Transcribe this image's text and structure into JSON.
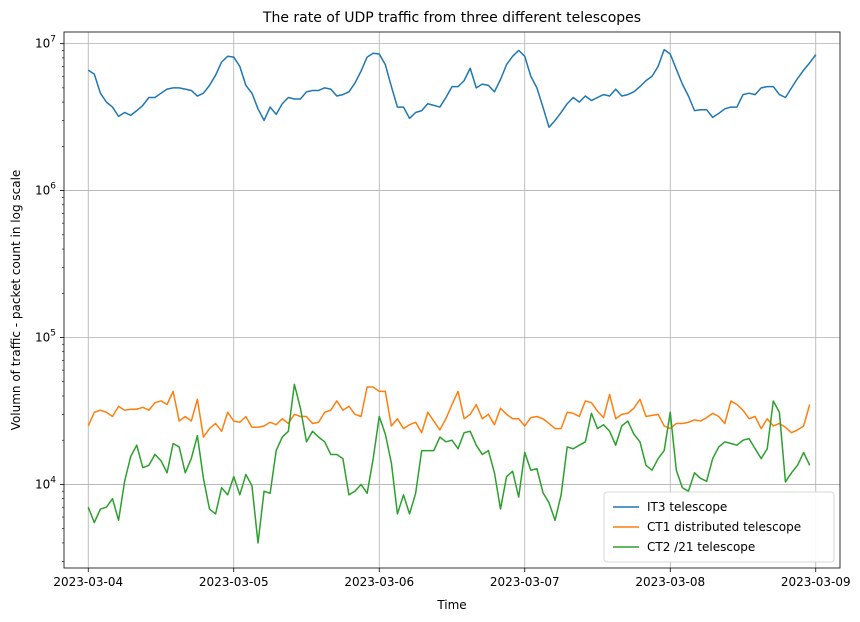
{
  "chart_data": {
    "type": "line",
    "title": "The rate of UDP traffic from three different telescopes",
    "xlabel": "Time",
    "ylabel": "Volumn of traffic - packet count in log scale",
    "yscale": "log",
    "ylim": [
      2700,
      12000000
    ],
    "xlim": [
      "2023-03-03 20:00",
      "2023-03-09 04:00"
    ],
    "grid": true,
    "legend_position": "lower-right",
    "x_ticks": [
      "2023-03-04",
      "2023-03-05",
      "2023-03-06",
      "2023-03-07",
      "2023-03-08",
      "2023-03-09"
    ],
    "y_ticks": [
      {
        "value": 10000,
        "base": "10",
        "exp": "4"
      },
      {
        "value": 100000,
        "base": "10",
        "exp": "5"
      },
      {
        "value": 1000000,
        "base": "10",
        "exp": "6"
      },
      {
        "value": 10000000,
        "base": "10",
        "exp": "7"
      }
    ],
    "x_start": "2023-03-04 00:00",
    "x_step_hours": 1,
    "series": [
      {
        "name": "IT3 telescope",
        "color": "#1f77b4",
        "values": [
          6600000,
          6200000,
          4600000,
          4000000,
          3700000,
          3200000,
          3400000,
          3250000,
          3500000,
          3800000,
          4300000,
          4300000,
          4600000,
          4900000,
          5000000,
          5000000,
          4900000,
          4800000,
          4400000,
          4600000,
          5200000,
          6100000,
          7500000,
          8200000,
          8100000,
          7000000,
          5200000,
          4600000,
          3600000,
          3000000,
          3700000,
          3300000,
          3900000,
          4300000,
          4200000,
          4200000,
          4700000,
          4800000,
          4800000,
          5000000,
          4900000,
          4400000,
          4500000,
          4700000,
          5400000,
          6500000,
          8100000,
          8600000,
          8500000,
          7200000,
          5100000,
          3700000,
          3700000,
          3100000,
          3400000,
          3500000,
          3900000,
          3800000,
          3700000,
          4300000,
          5100000,
          5100000,
          5600000,
          6800000,
          5000000,
          5300000,
          5200000,
          4700000,
          5700000,
          7200000,
          8200000,
          9000000,
          8200000,
          6000000,
          5000000,
          3700000,
          2700000,
          3000000,
          3400000,
          3900000,
          4300000,
          4000000,
          4400000,
          4100000,
          4300000,
          4500000,
          4400000,
          4900000,
          4400000,
          4500000,
          4700000,
          5100000,
          5600000,
          6000000,
          7000000,
          9100000,
          8500000,
          6700000,
          5300000,
          4400000,
          3500000,
          3550000,
          3550000,
          3150000,
          3350000,
          3600000,
          3700000,
          3700000,
          4500000,
          4600000,
          4500000,
          5000000,
          5100000,
          5100000,
          4500000,
          4300000,
          5000000,
          5800000,
          6600000,
          7400000,
          8400000
        ]
      },
      {
        "name": "CT1 distributed telescope",
        "color": "#ff7f0e",
        "values": [
          25000,
          31000,
          32000,
          31000,
          29000,
          34000,
          32000,
          32500,
          32500,
          33500,
          32000,
          36000,
          37000,
          35000,
          43000,
          27000,
          29000,
          27000,
          38000,
          21000,
          24000,
          26000,
          23000,
          31000,
          27000,
          26500,
          29000,
          24500,
          24500,
          25000,
          26500,
          25500,
          28000,
          26000,
          30000,
          29000,
          29000,
          26000,
          26500,
          31000,
          32000,
          37000,
          32000,
          34000,
          30000,
          29000,
          46000,
          46000,
          43000,
          43000,
          25000,
          28000,
          24000,
          25500,
          26500,
          22500,
          31000,
          27000,
          23500,
          28000,
          35000,
          43000,
          28000,
          30000,
          35000,
          28000,
          30000,
          25500,
          33000,
          30000,
          28000,
          28000,
          25000,
          28500,
          29000,
          28000,
          26000,
          24000,
          24000,
          31000,
          30500,
          29000,
          37000,
          36000,
          31500,
          28500,
          41000,
          28000,
          30000,
          30500,
          33000,
          38000,
          29000,
          29500,
          30000,
          25000,
          24000,
          26000,
          26000,
          26500,
          27500,
          27000,
          28500,
          30500,
          29000,
          26000,
          37000,
          35000,
          32000,
          28000,
          29000,
          24000,
          28000,
          25000,
          26000,
          24500,
          22500,
          23500,
          25000,
          35000
        ]
      },
      {
        "name": "CT2 /21 telescope",
        "color": "#2ca02c",
        "values": [
          7000,
          5500,
          6800,
          7000,
          8000,
          5700,
          10500,
          15500,
          18500,
          13000,
          13500,
          16000,
          14500,
          12000,
          19000,
          18000,
          12000,
          15000,
          21500,
          11000,
          6800,
          6300,
          9500,
          8500,
          11300,
          8500,
          11700,
          9800,
          4000,
          9000,
          8700,
          17000,
          21000,
          23000,
          48000,
          33000,
          19500,
          23000,
          21000,
          19500,
          16000,
          16000,
          15000,
          8500,
          9000,
          10000,
          8700,
          15000,
          29000,
          22000,
          14000,
          6300,
          8500,
          6300,
          8700,
          17000,
          17000,
          17000,
          21000,
          19500,
          20000,
          17500,
          22500,
          23000,
          18500,
          16000,
          17000,
          12000,
          6800,
          11300,
          12300,
          8200,
          16500,
          12500,
          12800,
          8800,
          7500,
          5700,
          8500,
          18000,
          17500,
          18500,
          19500,
          30500,
          24000,
          25500,
          23000,
          18500,
          25000,
          27000,
          22000,
          19500,
          13500,
          12500,
          15000,
          17000,
          31000,
          12500,
          9500,
          9000,
          12000,
          11000,
          10500,
          15000,
          18000,
          19500,
          19000,
          18500,
          20000,
          20500,
          17500,
          15000,
          17500,
          37000,
          31000,
          10400,
          12000,
          13500,
          16500,
          13500
        ]
      }
    ]
  }
}
